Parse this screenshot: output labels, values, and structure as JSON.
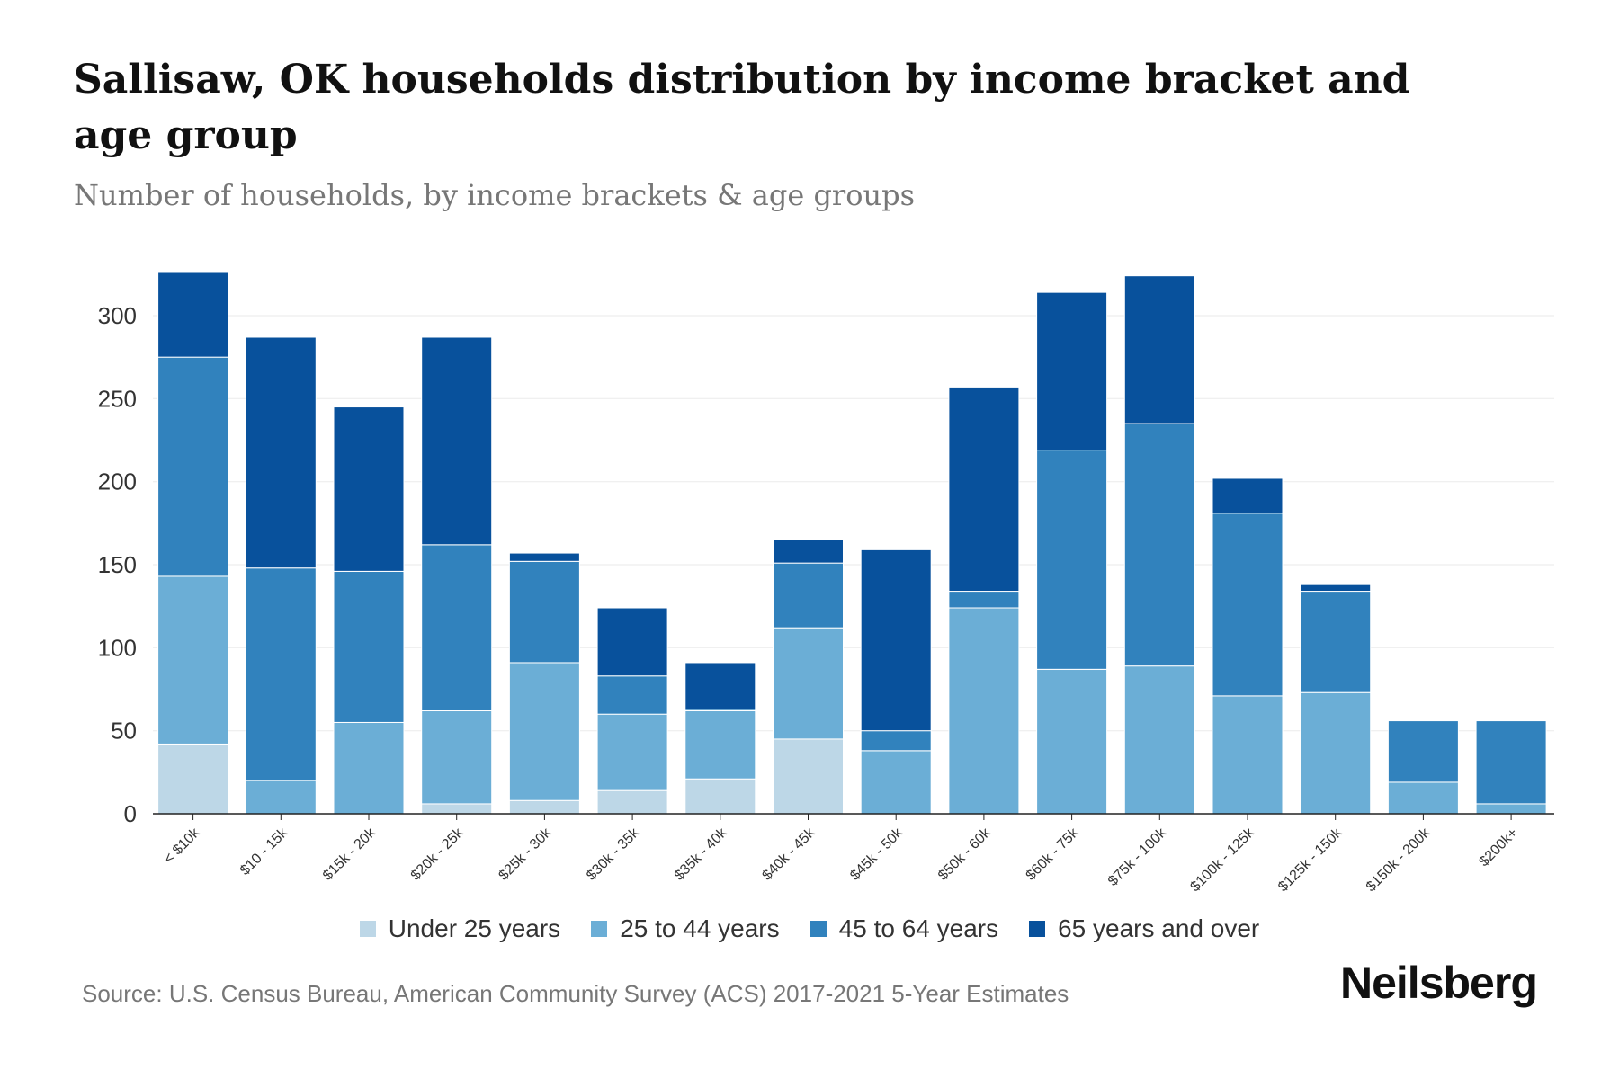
{
  "title": "Sallisaw, OK households distribution by income bracket and age group",
  "subtitle": "Number of households, by income brackets & age groups",
  "source": "Source: U.S. Census Bureau, American Community Survey (ACS) 2017-2021 5-Year Estimates",
  "logo": "Neilsberg",
  "chart_data": {
    "type": "bar",
    "stacked": true,
    "title": "Sallisaw, OK households distribution by income bracket and age group",
    "xlabel": "",
    "ylabel": "Number of households",
    "ylim": [
      0,
      330
    ],
    "yticks": [
      0,
      50,
      100,
      150,
      200,
      250,
      300
    ],
    "grid": true,
    "legend_position": "bottom",
    "categories": [
      "< $10k",
      "$10 - 15k",
      "$15k - 20k",
      "$20k - 25k",
      "$25k - 30k",
      "$30k - 35k",
      "$35k - 40k",
      "$40k - 45k",
      "$45k - 50k",
      "$50k - 60k",
      "$60k - 75k",
      "$75k - 100k",
      "$100k - 125k",
      "$125k - 150k",
      "$150k - 200k",
      "$200k+"
    ],
    "series": [
      {
        "name": "Under 25 years",
        "color": "#bdd7e7",
        "values": [
          42,
          0,
          0,
          6,
          8,
          14,
          21,
          45,
          0,
          0,
          0,
          0,
          0,
          0,
          0,
          0
        ]
      },
      {
        "name": "25 to 44 years",
        "color": "#6baed6",
        "values": [
          101,
          20,
          55,
          56,
          83,
          46,
          41,
          67,
          38,
          124,
          87,
          89,
          71,
          73,
          19,
          6
        ]
      },
      {
        "name": "45 to 64 years",
        "color": "#3182bd",
        "values": [
          132,
          128,
          91,
          100,
          61,
          23,
          1,
          39,
          12,
          10,
          132,
          146,
          110,
          61,
          37,
          50
        ]
      },
      {
        "name": "65 years and over",
        "color": "#08519c",
        "values": [
          51,
          139,
          99,
          125,
          5,
          41,
          28,
          14,
          109,
          123,
          95,
          89,
          21,
          4,
          0,
          0
        ]
      }
    ]
  }
}
